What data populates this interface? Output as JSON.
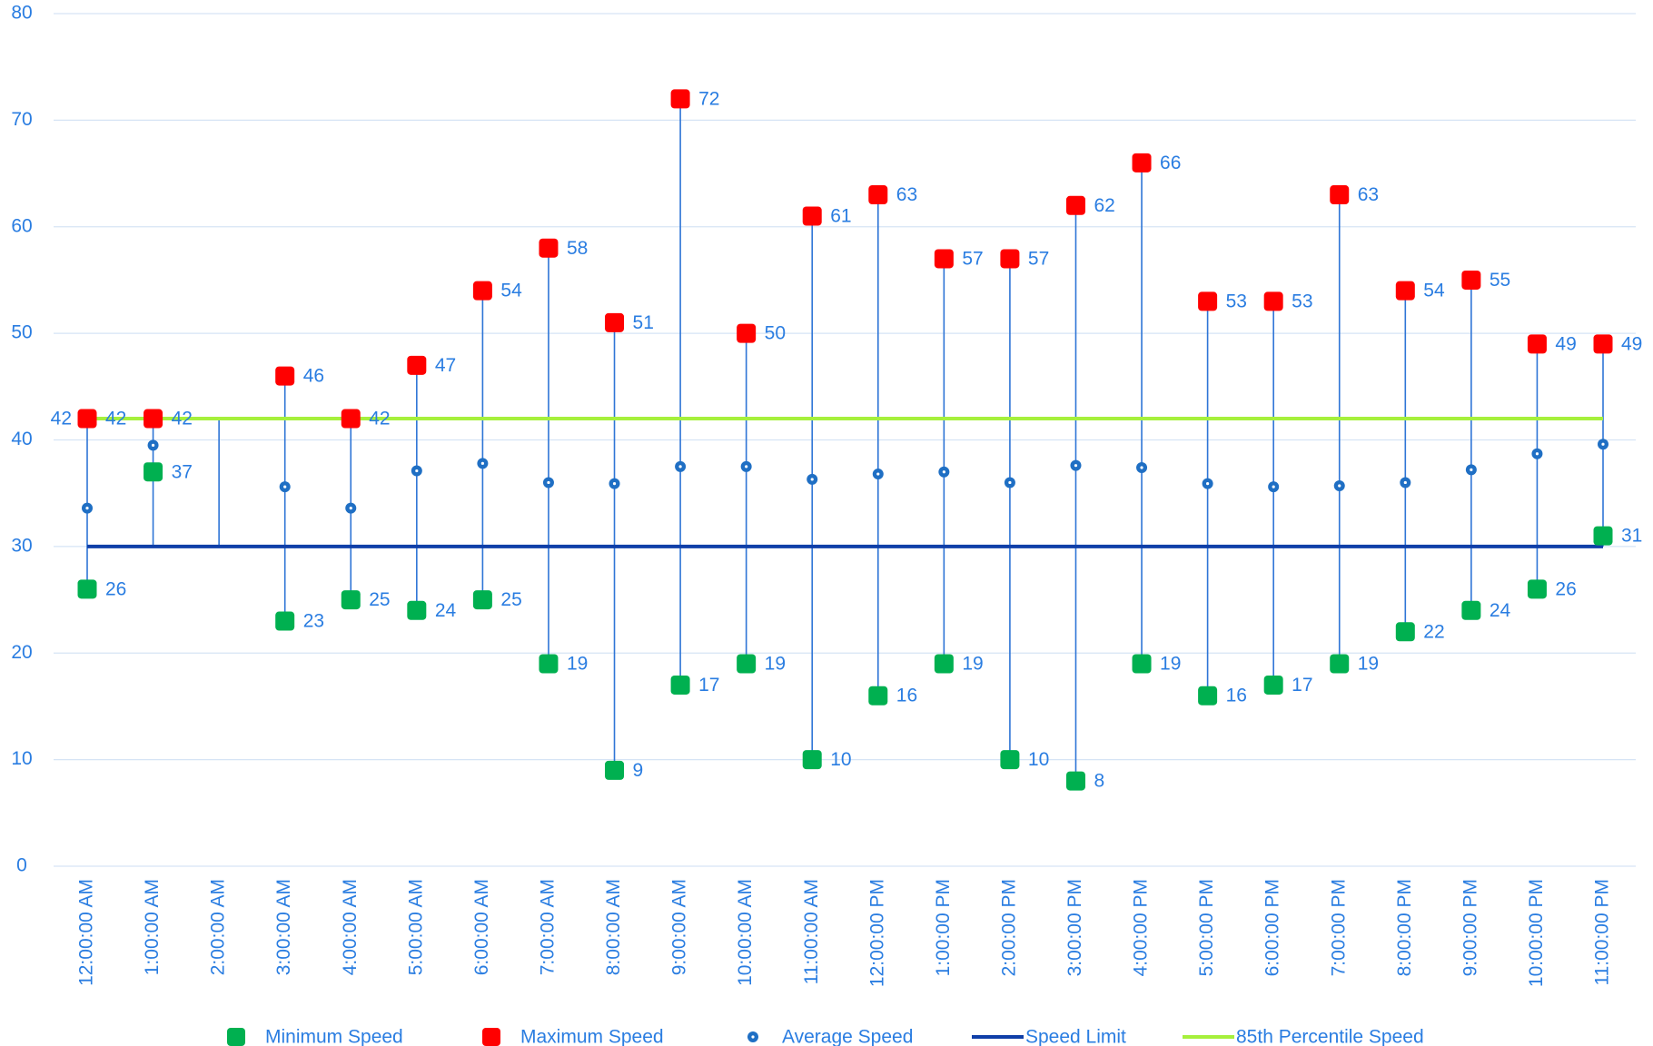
{
  "chart_data": {
    "type": "line",
    "categories": [
      "12:00:00 AM",
      "1:00:00 AM",
      "2:00:00 AM",
      "3:00:00 AM",
      "4:00:00 AM",
      "5:00:00 AM",
      "6:00:00 AM",
      "7:00:00 AM",
      "8:00:00 AM",
      "9:00:00 AM",
      "10:00:00 AM",
      "11:00:00 AM",
      "12:00:00 PM",
      "1:00:00 PM",
      "2:00:00 PM",
      "3:00:00 PM",
      "4:00:00 PM",
      "5:00:00 PM",
      "6:00:00 PM",
      "7:00:00 PM",
      "8:00:00 PM",
      "9:00:00 PM",
      "10:00:00 PM",
      "11:00:00 PM"
    ],
    "series": [
      {
        "name": "Minimum Speed",
        "color": "#00b050",
        "marker": "square",
        "line": false,
        "data_labels": true,
        "values": [
          26,
          37,
          null,
          23,
          25,
          24,
          25,
          19,
          9,
          17,
          19,
          10,
          16,
          19,
          10,
          8,
          19,
          16,
          17,
          19,
          22,
          24,
          26,
          31
        ]
      },
      {
        "name": "Maximum Speed",
        "color": "#ff0000",
        "marker": "square",
        "line": false,
        "data_labels": true,
        "values": [
          42,
          42,
          null,
          46,
          42,
          47,
          54,
          58,
          51,
          72,
          50,
          61,
          63,
          57,
          57,
          62,
          66,
          53,
          53,
          63,
          54,
          55,
          49,
          49
        ]
      },
      {
        "name": "Average Speed",
        "color": "#1f6fc4",
        "marker": "circle",
        "line": false,
        "data_labels": false,
        "values": [
          33.6,
          39.5,
          null,
          35.6,
          33.6,
          37.1,
          37.8,
          36,
          35.9,
          37.5,
          37.5,
          36.3,
          36.8,
          37,
          36,
          37.6,
          37.4,
          35.9,
          35.6,
          35.7,
          36,
          37.2,
          38.7,
          39.6
        ]
      },
      {
        "name": "Speed Limit",
        "color": "#0f3fa8",
        "marker": "none",
        "line": true,
        "data_labels": false,
        "values": [
          30,
          30,
          30,
          30,
          30,
          30,
          30,
          30,
          30,
          30,
          30,
          30,
          30,
          30,
          30,
          30,
          30,
          30,
          30,
          30,
          30,
          30,
          30,
          30
        ]
      },
      {
        "name": "85th Percentile Speed",
        "color": "#a6f03c",
        "marker": "none",
        "line": true,
        "data_labels": [
          0
        ],
        "values": [
          42,
          42,
          42,
          42,
          42,
          42,
          42,
          42,
          42,
          42,
          42,
          42,
          42,
          42,
          42,
          42,
          42,
          42,
          42,
          42,
          42,
          42,
          42,
          42
        ]
      }
    ],
    "ylim": [
      0,
      80
    ],
    "yticks": [
      0,
      10,
      20,
      30,
      40,
      50,
      60,
      70,
      80
    ],
    "grid": true,
    "high_low_lines": true,
    "legend": "bottom"
  }
}
